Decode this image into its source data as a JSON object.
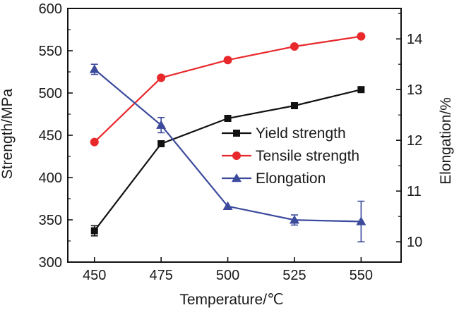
{
  "chart_data": {
    "type": "line",
    "xlabel": "Temperature/℃",
    "ylabel_left": "Strength/MPa",
    "ylabel_right": "Elongation/%",
    "x": [
      450,
      475,
      500,
      525,
      550
    ],
    "x_ticks": [
      "450",
      "475",
      "500",
      "525",
      "550"
    ],
    "xlim": [
      440,
      565
    ],
    "ylim_left": [
      300,
      600
    ],
    "y_left_ticks": [
      "300",
      "350",
      "400",
      "450",
      "500",
      "550",
      "600"
    ],
    "ylim_right": [
      9.6,
      14.6
    ],
    "y_right_ticks": [
      "10",
      "11",
      "12",
      "13",
      "14"
    ],
    "grid": false,
    "legend_position": "center-right",
    "series": [
      {
        "name": "Yield strength",
        "axis": "left",
        "marker": "square",
        "color": "#111111",
        "values": [
          337,
          440,
          470,
          485,
          504
        ],
        "errors": [
          6,
          0,
          0,
          0,
          0
        ]
      },
      {
        "name": "Tensile strength",
        "axis": "left",
        "marker": "circle",
        "color": "#e8282b",
        "values": [
          442,
          518,
          539,
          555,
          567
        ],
        "errors": [
          0,
          0,
          0,
          0,
          0
        ]
      },
      {
        "name": "Elongation",
        "axis": "right",
        "marker": "triangle",
        "color": "#3c4a9c",
        "values": [
          13.4,
          12.3,
          10.7,
          10.43,
          10.4
        ],
        "errors": [
          0.1,
          0.15,
          0,
          0.1,
          0.4
        ]
      }
    ]
  }
}
